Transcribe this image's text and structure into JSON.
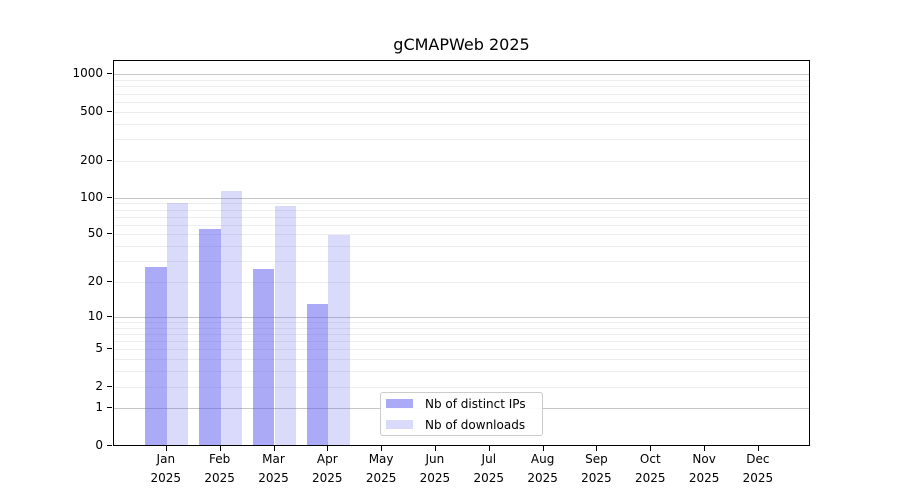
{
  "title": "gCMAPWeb 2025",
  "chart_data": {
    "type": "bar",
    "title": "gCMAPWeb 2025",
    "categories": [
      "Jan",
      "Feb",
      "Mar",
      "Apr",
      "May",
      "Jun",
      "Jul",
      "Aug",
      "Sep",
      "Oct",
      "Nov",
      "Dec"
    ],
    "x_year": "2025",
    "series": [
      {
        "name": "Nb of distinct IPs",
        "color": "rgba(85,85,238,0.5)",
        "color_hex_on_white": "#aaaaf6",
        "values": [
          27,
          55,
          26,
          13,
          0,
          0,
          0,
          0,
          0,
          0,
          0,
          0
        ]
      },
      {
        "name": "Nb of downloads",
        "color": "rgba(85,85,238,0.22)",
        "color_hex_on_white": "#d9d9f9",
        "values": [
          91,
          113,
          85,
          49,
          0,
          0,
          0,
          0,
          0,
          0,
          0,
          0
        ]
      }
    ],
    "xlabel": "",
    "ylabel": "",
    "y_axis": {
      "scale": "log1p",
      "tick_values": [
        0,
        1,
        2,
        5,
        10,
        20,
        50,
        100,
        200,
        500,
        1000
      ],
      "major_grid_values": [
        1,
        10,
        100,
        1000
      ],
      "minor_grid_values": [
        2,
        3,
        4,
        5,
        6,
        7,
        8,
        9,
        20,
        30,
        40,
        50,
        60,
        70,
        80,
        90,
        200,
        300,
        400,
        500,
        600,
        700,
        800,
        900
      ],
      "ylim": [
        0,
        1290
      ]
    },
    "grid": true,
    "legend_position": "lower center",
    "colors": {
      "major_grid": "#c6c6c6",
      "minor_grid": "#ededed",
      "axis": "#000000",
      "legend_border": "#cccccc",
      "bar_base": "#5555ee"
    }
  }
}
